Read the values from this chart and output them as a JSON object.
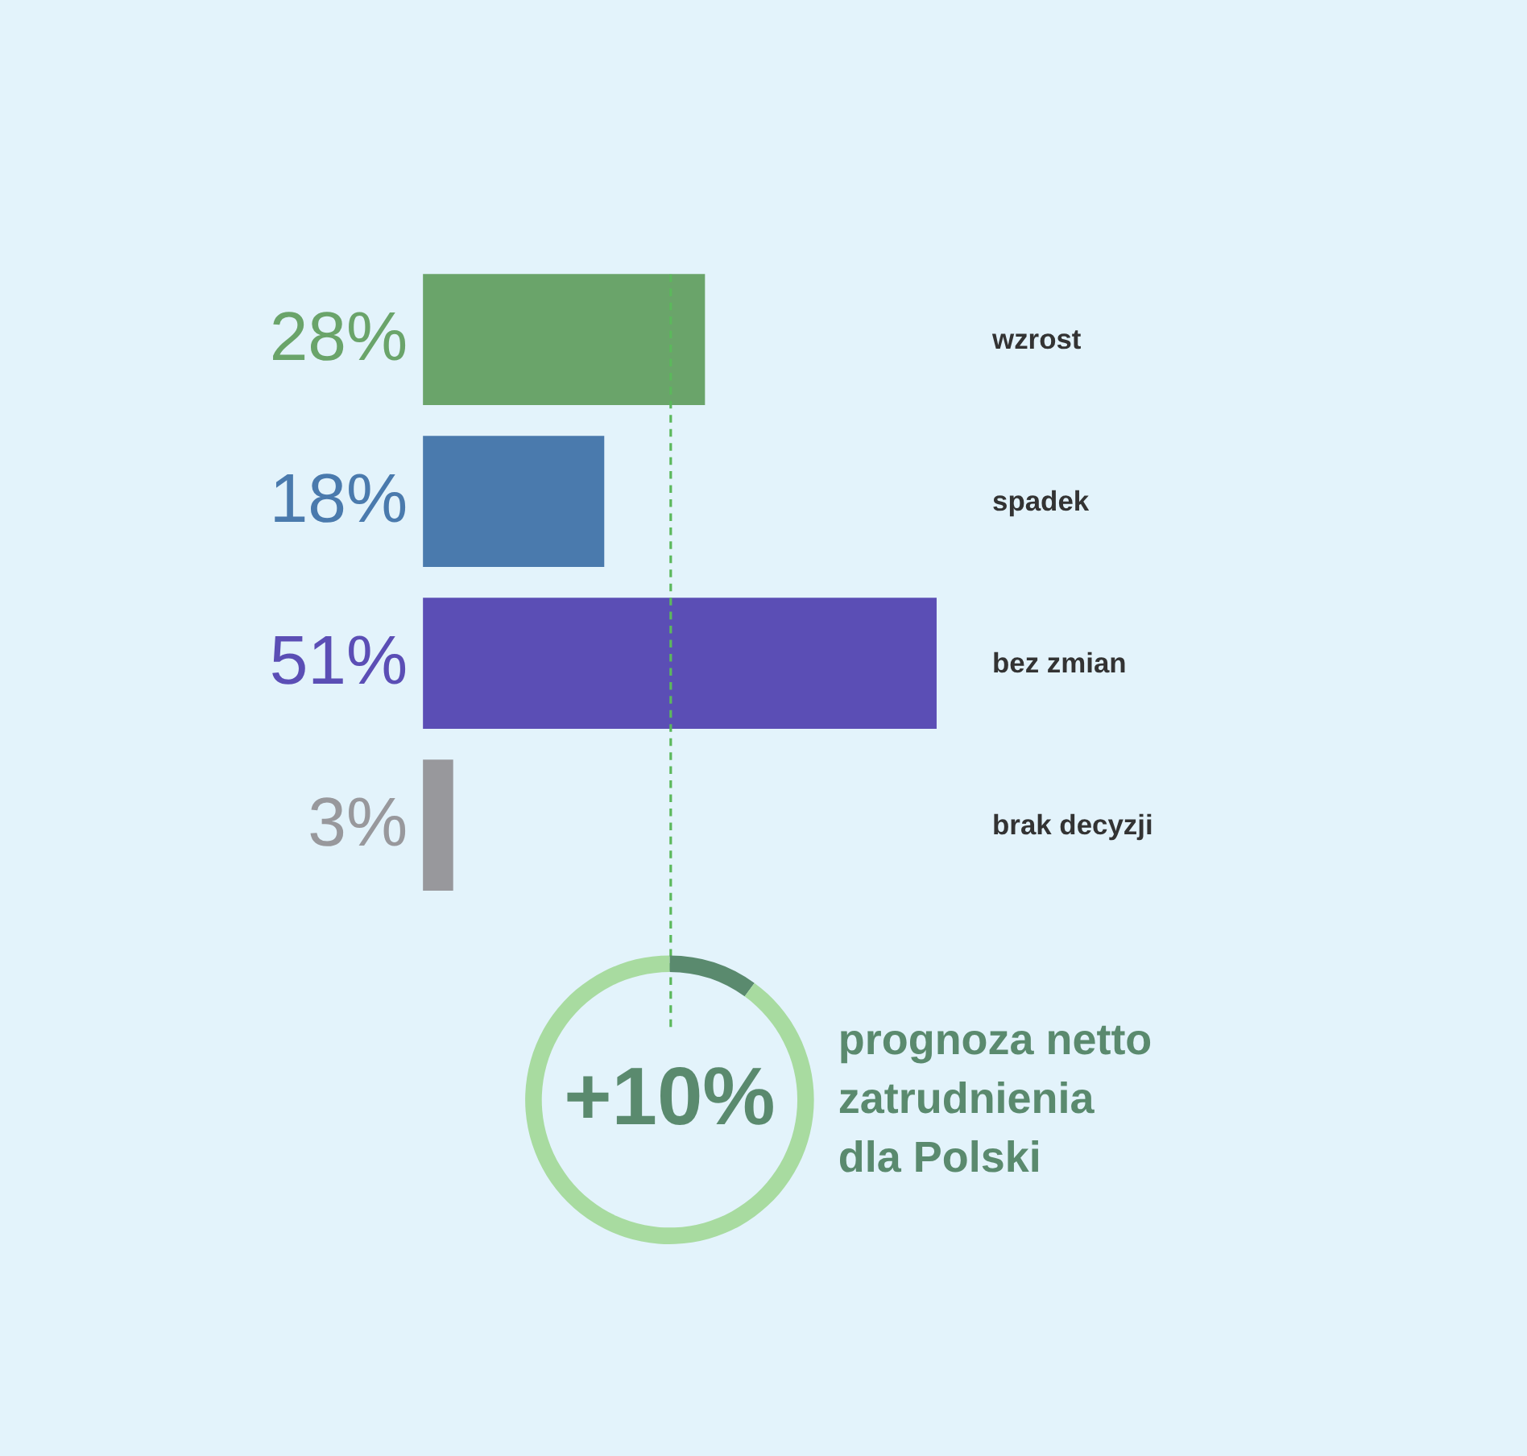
{
  "chart_data": [
    {
      "type": "bar",
      "orientation": "horizontal",
      "categories": [
        "wzrost",
        "spadek",
        "bez zmian",
        "brak decyzji"
      ],
      "values": [
        28,
        18,
        51,
        3
      ],
      "colors": [
        "#6aa46a",
        "#4a7aad",
        "#5b4eb5",
        "#98989c"
      ],
      "value_labels": [
        "28%",
        "18%",
        "51%",
        "3%"
      ],
      "tick_labels": "y",
      "ref_lines": [
        {
          "axis": "x",
          "value": 24.6,
          "label": null,
          "color": "#5cb85c",
          "line_style": "dashed"
        }
      ]
    },
    {
      "type": "donut",
      "categories": [
        null,
        null
      ],
      "values": [
        10,
        90
      ],
      "colors": [
        "#5a8a6e",
        "#a8dba0"
      ],
      "annotations": [
        "+10%",
        "prognoza netto zatrudnienia dla Polski"
      ]
    }
  ]
}
